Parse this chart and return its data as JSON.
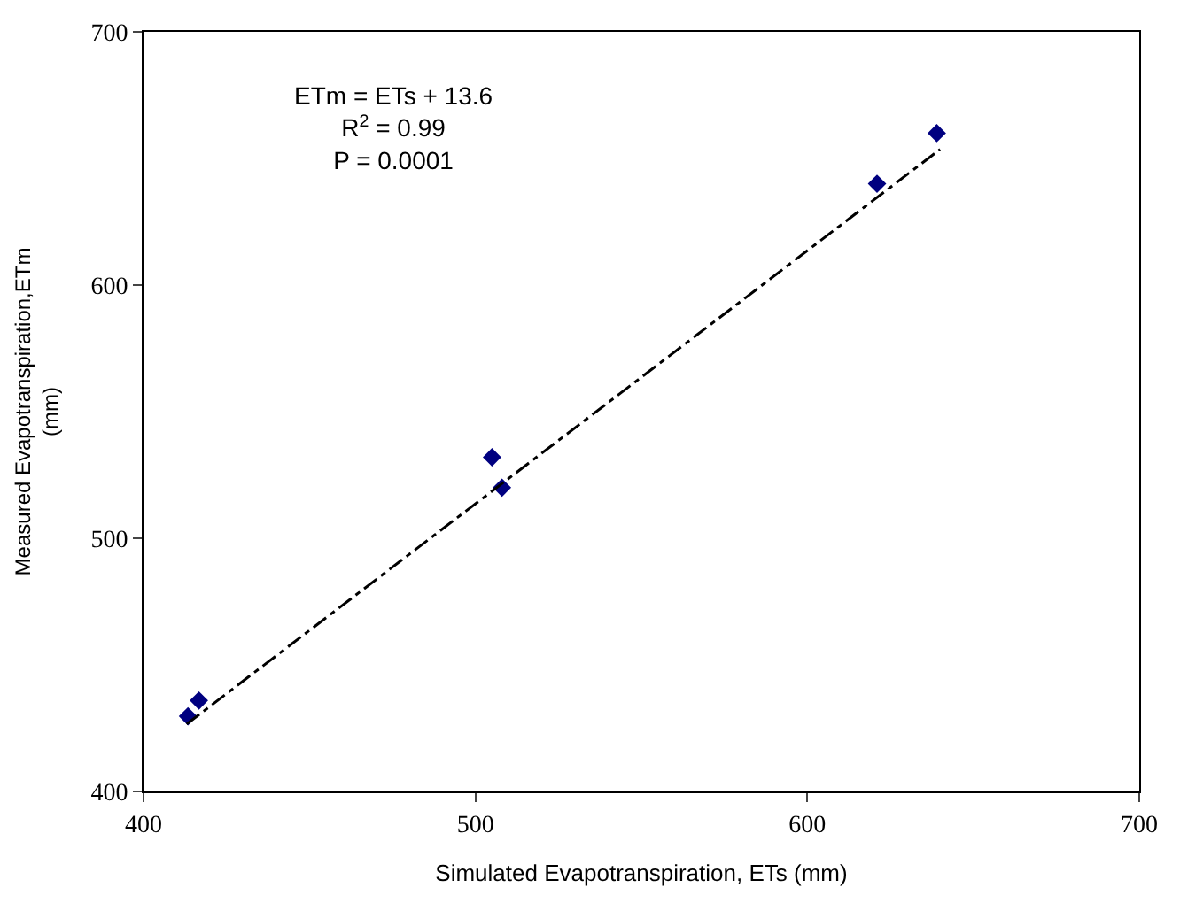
{
  "chart_data": {
    "type": "scatter",
    "xlabel": "Simulated Evapotranspiration, ETs (mm)",
    "ylabel": "Measured Evapotranspiration,ETm\n(mm)",
    "xlim": [
      400,
      700
    ],
    "xticks": [
      400,
      500,
      600,
      700
    ],
    "ylim": [
      400,
      700
    ],
    "yticks": [
      400,
      500,
      600,
      700
    ],
    "legend": false,
    "series": [
      {
        "color": "#000080",
        "marker": "diamond",
        "x": [
          413.4,
          416.7,
          505,
          508,
          621,
          639
        ],
        "values": [
          429.7,
          435.9,
          532,
          520,
          640,
          660
        ]
      },
      {
        "type": "line",
        "color": "#000000",
        "marker": "none",
        "line_style": "dashdot",
        "x": [
          413,
          640
        ],
        "values": [
          426.6,
          653.6
        ]
      }
    ],
    "annotations": [
      "ETm = ETs + 13.6\nR$^{2}$ = 0.99\nP = 0.0001"
    ]
  }
}
